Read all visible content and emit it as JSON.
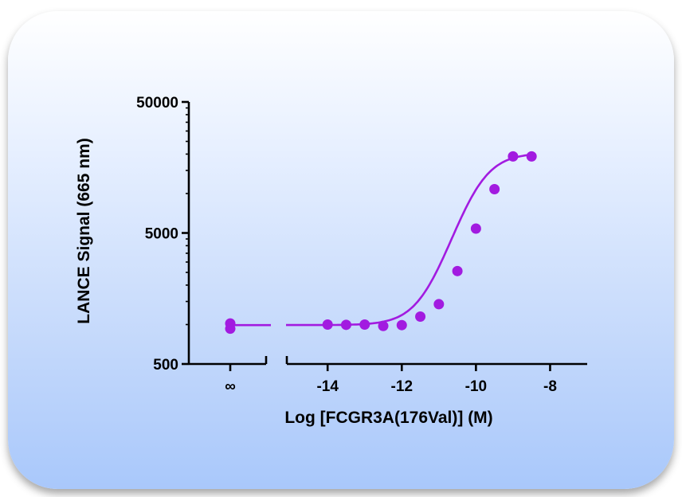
{
  "chart_data": {
    "type": "scatter",
    "title": "",
    "xlabel": "Log [FCGR3A(176Val)] (M)",
    "ylabel": "LANCE Signal (665 nm)",
    "y_scale": "log",
    "ylim": [
      500,
      50000
    ],
    "y_ticks": [
      {
        "value": 500,
        "label": "500"
      },
      {
        "value": 5000,
        "label": "5000"
      },
      {
        "value": 50000,
        "label": "50000"
      }
    ],
    "x_break": true,
    "x_main_range": [
      -15.1,
      -7
    ],
    "x_ticks": [
      {
        "value": -14,
        "label": "-14"
      },
      {
        "value": -12,
        "label": "-12"
      },
      {
        "value": -10,
        "label": "-10"
      },
      {
        "value": -8,
        "label": "-8"
      }
    ],
    "x_zero_label": "∞",
    "zero_points": [
      1020,
      930
    ],
    "zero_baseline": 990,
    "series": [
      {
        "color": "#a21be0",
        "points": [
          {
            "x": -14.0,
            "y": 1000
          },
          {
            "x": -13.5,
            "y": 995
          },
          {
            "x": -13.0,
            "y": 1000
          },
          {
            "x": -12.5,
            "y": 975
          },
          {
            "x": -12.0,
            "y": 990
          },
          {
            "x": -11.5,
            "y": 1150
          },
          {
            "x": -11.0,
            "y": 1430
          },
          {
            "x": -10.5,
            "y": 2560
          },
          {
            "x": -10.0,
            "y": 5400
          },
          {
            "x": -9.5,
            "y": 10800
          },
          {
            "x": -9.0,
            "y": 19200
          },
          {
            "x": -8.5,
            "y": 19200
          }
        ],
        "fit": {
          "bottom": 990,
          "top": 20400,
          "logEC50": -10.0,
          "hill": 1.0
        }
      }
    ]
  }
}
